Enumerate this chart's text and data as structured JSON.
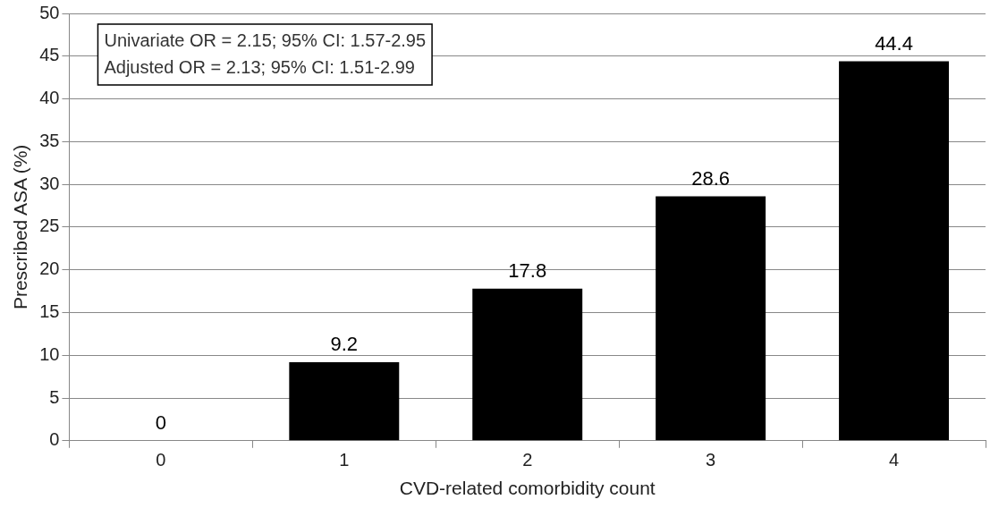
{
  "chart_data": {
    "type": "bar",
    "xlabel": "CVD-related comorbidity count",
    "ylabel": "Prescribed ASA (%)",
    "categories": [
      "0",
      "1",
      "2",
      "3",
      "4"
    ],
    "values": [
      0,
      9.2,
      17.8,
      28.6,
      44.4
    ],
    "color": "#000000",
    "ylim": [
      0,
      50
    ],
    "yticks": [
      0,
      5,
      10,
      15,
      20,
      25,
      30,
      35,
      40,
      45,
      50
    ],
    "grid": "y",
    "data_labels": true,
    "legend": false,
    "annotations": [
      "Univariate OR = 2.15; 95% CI: 1.57-2.95",
      "Adjusted OR = 2.13; 95% CI: 1.51-2.99"
    ]
  }
}
